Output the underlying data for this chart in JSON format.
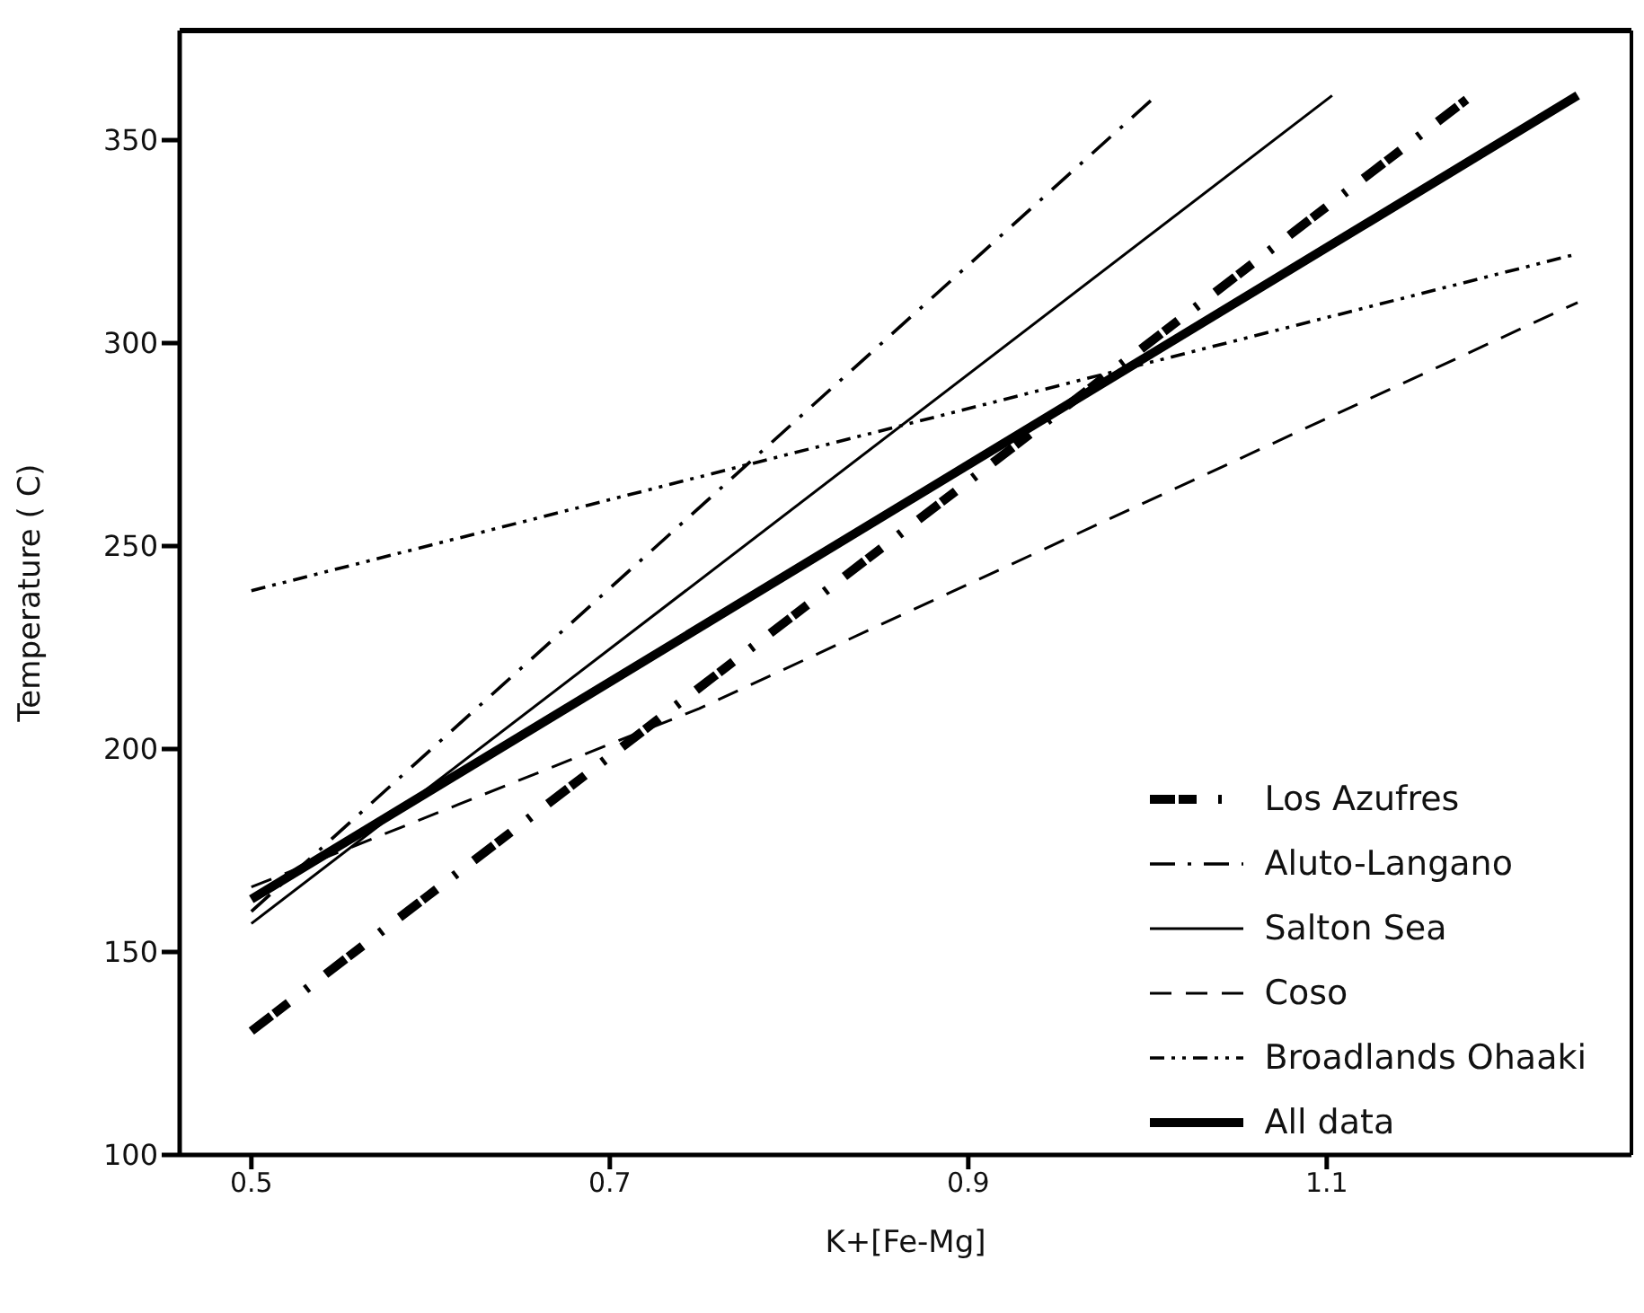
{
  "chart_data": {
    "type": "line",
    "xlabel": "K+[Fe-Mg]",
    "ylabel": "Temperature ( C)",
    "xlim": [
      0.46,
      1.27
    ],
    "xticks": [
      0.5,
      0.7,
      0.9,
      1.1
    ],
    "ylim": [
      100,
      377
    ],
    "yticks": [
      100,
      150,
      200,
      250,
      300,
      350
    ],
    "legend": "bottom right",
    "marker": "none",
    "series": [
      {
        "name": "Los Azufres",
        "color": "#000000",
        "line_style": "dashdot",
        "x": [
          0.5,
          1.178
        ],
        "values": [
          130.5,
          360
        ]
      },
      {
        "name": "Aluto-Langano",
        "color": "#000000",
        "line_style": "dashdot",
        "x": [
          0.5,
          1.005
        ],
        "values": [
          160,
          361
        ]
      },
      {
        "name": "Salton Sea",
        "color": "#000000",
        "line_style": "solid",
        "x": [
          0.5,
          1.103
        ],
        "values": [
          157,
          361
        ]
      },
      {
        "name": "Coso",
        "color": "#000000",
        "line_style": "dashed",
        "x": [
          0.5,
          0.75,
          1.24
        ],
        "values": [
          166,
          210,
          310
        ]
      },
      {
        "name": "Broadlands Ohaaki",
        "color": "#000000",
        "line_style": "dashdotdot",
        "x": [
          0.5,
          1.24
        ],
        "values": [
          239,
          322
        ]
      },
      {
        "name": "All data",
        "color": "#000000",
        "line_style": "solid",
        "x": [
          0.5,
          1.24
        ],
        "values": [
          163,
          361
        ]
      }
    ]
  }
}
